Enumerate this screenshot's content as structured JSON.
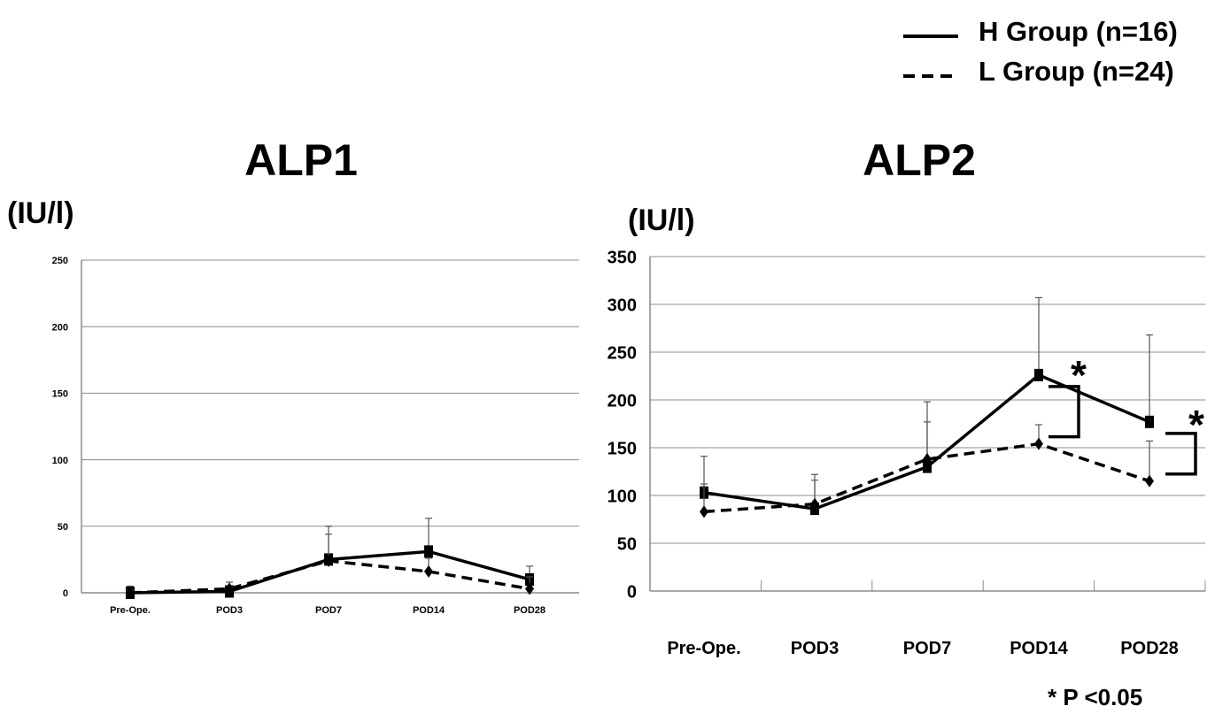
{
  "legend": {
    "entries": [
      {
        "label": "H Group (n=16)",
        "style": "solid"
      },
      {
        "label": "L Group (n=24)",
        "style": "dashed"
      }
    ]
  },
  "footnote": "* P <0.05",
  "chart_data": [
    {
      "type": "line",
      "title": "ALP1",
      "ylabel": "(IU/l)",
      "xlabel": "",
      "ylim": [
        0,
        250
      ],
      "yticks": [
        "0",
        "50",
        "100",
        "150",
        "200",
        "250"
      ],
      "categories": [
        "Pre-Ope.",
        "POD3",
        "POD7",
        "POD14",
        "POD28"
      ],
      "grid": true,
      "series": [
        {
          "name": "H Group (n=16)",
          "values": [
            0,
            1,
            25,
            31,
            10
          ],
          "sd_upper": [
            5,
            4,
            50,
            56,
            20
          ],
          "marker": "square",
          "line": "solid"
        },
        {
          "name": "L Group (n=24)",
          "values": [
            0,
            3,
            24,
            16,
            3
          ],
          "sd_upper": [
            2,
            8,
            44,
            26,
            12
          ],
          "marker": "diamond",
          "line": "dashed"
        }
      ],
      "significance": []
    },
    {
      "type": "line",
      "title": "ALP2",
      "ylabel": "(IU/l)",
      "xlabel": "",
      "ylim": [
        0,
        350
      ],
      "yticks": [
        "0",
        "50",
        "100",
        "150",
        "200",
        "250",
        "300",
        "350"
      ],
      "categories": [
        "Pre-Ope.",
        "POD3",
        "POD7",
        "POD14",
        "POD28"
      ],
      "grid": true,
      "series": [
        {
          "name": "H Group (n=16)",
          "values": [
            103,
            86,
            130,
            226,
            177
          ],
          "sd_upper": [
            141,
            122,
            177,
            307,
            268
          ],
          "marker": "square",
          "line": "solid"
        },
        {
          "name": "L Group (n=24)",
          "values": [
            83,
            91,
            138,
            154,
            115
          ],
          "sd_upper": [
            112,
            116,
            198,
            174,
            157
          ],
          "marker": "diamond",
          "line": "dashed"
        }
      ],
      "significance": [
        {
          "category": "POD14",
          "mark": "*"
        },
        {
          "category": "POD28",
          "mark": "*"
        }
      ]
    }
  ]
}
